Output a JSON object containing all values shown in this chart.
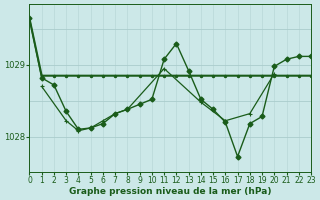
{
  "background_color": "#cce8e8",
  "plot_bg_color": "#cce8e8",
  "grid_color_v": "#b8d8d8",
  "grid_color_h": "#aacccc",
  "line_color": "#1a5c1a",
  "xlabel": "Graphe pression niveau de la mer (hPa)",
  "xlabel_fontsize": 6.5,
  "tick_fontsize": 5.5,
  "hours": [
    0,
    1,
    2,
    3,
    4,
    5,
    6,
    7,
    8,
    9,
    10,
    11,
    12,
    13,
    14,
    15,
    16,
    17,
    18,
    19,
    20,
    21,
    22,
    23
  ],
  "line1": [
    1029.65,
    1028.85,
    1028.85,
    1028.85,
    1028.85,
    1028.85,
    1028.85,
    1028.85,
    1028.85,
    1028.85,
    1028.85,
    1028.85,
    1028.85,
    1028.85,
    1028.85,
    1028.85,
    1028.85,
    1028.85,
    1028.85,
    1028.85,
    1028.85,
    1028.85,
    1028.85,
    1028.85
  ],
  "line2": [
    1029.65,
    1028.82,
    1028.72,
    1028.35,
    1028.1,
    1028.12,
    1028.18,
    1028.32,
    1028.38,
    1028.45,
    1028.52,
    1029.08,
    1029.3,
    1028.92,
    1028.52,
    1028.38,
    1028.2,
    1027.72,
    1028.18,
    1028.28,
    1028.98,
    1029.08,
    1029.12,
    1029.12
  ],
  "line3_x": [
    1,
    3,
    4,
    5,
    6,
    7,
    8,
    11,
    14,
    16,
    18,
    20
  ],
  "line3_y": [
    1028.7,
    1028.22,
    1028.08,
    1028.12,
    1028.22,
    1028.32,
    1028.38,
    1028.95,
    1028.48,
    1028.22,
    1028.32,
    1028.88
  ],
  "ylim_min": 1027.5,
  "ylim_max": 1029.85,
  "yticks": [
    1028.0,
    1029.0
  ],
  "xlim_min": 0,
  "xlim_max": 23
}
